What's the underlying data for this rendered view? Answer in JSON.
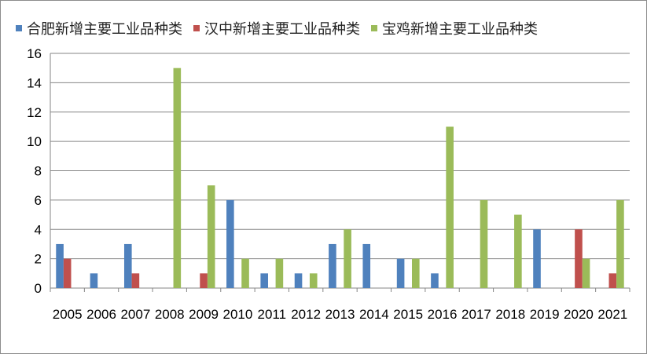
{
  "chart_data": {
    "type": "bar",
    "categories": [
      "2005",
      "2006",
      "2007",
      "2008",
      "2009",
      "2010",
      "2011",
      "2012",
      "2013",
      "2014",
      "2015",
      "2016",
      "2017",
      "2018",
      "2019",
      "2020",
      "2021"
    ],
    "series": [
      {
        "name": "合肥新增主要工业品种类",
        "color": "#4F81BD",
        "values": [
          3,
          1,
          3,
          0,
          0,
          6,
          1,
          1,
          3,
          3,
          2,
          1,
          0,
          0,
          4,
          0,
          0
        ]
      },
      {
        "name": "汉中新增主要工业品种类",
        "color": "#C0504D",
        "values": [
          2,
          0,
          1,
          0,
          1,
          0,
          0,
          0,
          0,
          0,
          0,
          0,
          0,
          0,
          0,
          4,
          1
        ]
      },
      {
        "name": "宝鸡新增主要工业品种类",
        "color": "#9BBB59",
        "values": [
          0,
          0,
          0,
          15,
          7,
          2,
          2,
          1,
          4,
          0,
          2,
          11,
          6,
          5,
          0,
          2,
          6
        ]
      }
    ],
    "yticks": [
      0,
      2,
      4,
      6,
      8,
      10,
      12,
      14,
      16
    ],
    "ylim": [
      0,
      16
    ],
    "grid": true,
    "legend": "top-left"
  }
}
